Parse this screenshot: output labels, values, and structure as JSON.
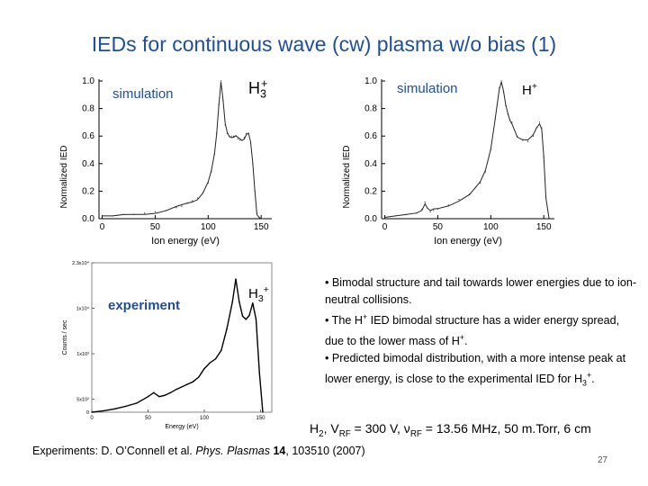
{
  "slide": {
    "title": "IEDs for continuous wave (cw) plasma w/o bias (1)",
    "page_number": "27"
  },
  "labels": {
    "sim_left": "simulation",
    "sim_right": "simulation",
    "exp_left": "experiment",
    "h3_top_base": "H",
    "h3_top_sup": "+",
    "h3_top_sub": "3",
    "hplus_base": "H",
    "hplus_sup": "+",
    "h3_mid_base": "H",
    "h3_mid_sub": "3",
    "h3_mid_sup": "+"
  },
  "bullets": {
    "b1": "• Bimodal structure and tail towards lower energies due to ion-neutral collisions.",
    "b2_a": "• The H",
    "b2_sup": "+",
    "b2_b": " IED bimodal structure has a wider energy spread, due to the lower mass of H",
    "b2_sup2": "+",
    "b2_c": ".",
    "b3_a": "• Predicted bimodal distribution, with a more intense peak at lower energy, is close to the experimental IED for H",
    "b3_sub": "3",
    "b3_sup": "+",
    "b3_c": "."
  },
  "params": {
    "p1": "H",
    "p1_sub": "2",
    "p2": ", V",
    "p2_sub": "RF",
    "p3": " = 300 V, ν",
    "p3_sub": "RF",
    "p4": " = 13.56 MHz, 50 m.Torr, 6 cm"
  },
  "reference": {
    "prefix": "Experiments: D. O’Connell et al. ",
    "journal": "Phys. Plasmas",
    "volume": "14",
    "suffix": ", 103510 (2007)"
  },
  "chart_data": [
    {
      "type": "line",
      "id": "sim-h3",
      "title": "",
      "xlabel": "Ion energy (eV)",
      "ylabel": "Normalized IED",
      "xlim": [
        -3,
        160
      ],
      "ylim": [
        0,
        1.0
      ],
      "xticks": [
        "0",
        "50",
        "100",
        "150"
      ],
      "yticks": [
        "0.0",
        "0.2",
        "0.4",
        "0.6",
        "0.8",
        "1.0"
      ],
      "x": [
        0,
        10,
        20,
        30,
        40,
        50,
        60,
        70,
        75,
        80,
        85,
        90,
        95,
        100,
        103,
        106,
        108,
        110,
        112,
        114,
        116,
        118,
        120,
        122,
        124,
        126,
        128,
        130,
        132,
        134,
        136,
        138,
        140,
        142,
        144,
        146,
        148,
        150,
        152
      ],
      "y": [
        0.02,
        0.02,
        0.03,
        0.03,
        0.04,
        0.05,
        0.06,
        0.08,
        0.09,
        0.11,
        0.13,
        0.15,
        0.19,
        0.26,
        0.34,
        0.47,
        0.62,
        0.83,
        1.0,
        0.86,
        0.68,
        0.62,
        0.6,
        0.6,
        0.6,
        0.6,
        0.58,
        0.57,
        0.57,
        0.59,
        0.62,
        0.62,
        0.55,
        0.4,
        0.2,
        0.04,
        0.01,
        0.0,
        0.0
      ]
    },
    {
      "type": "line",
      "id": "sim-hplus",
      "title": "",
      "xlabel": "Ion energy (eV)",
      "ylabel": "Normalized IED",
      "xlim": [
        -3,
        160
      ],
      "ylim": [
        0,
        1.0
      ],
      "xticks": [
        "0",
        "50",
        "100",
        "150"
      ],
      "yticks": [
        "0.0",
        "0.2",
        "0.4",
        "0.6",
        "0.8",
        "1.0"
      ],
      "x": [
        0,
        10,
        20,
        30,
        35,
        38,
        40,
        43,
        46,
        50,
        60,
        70,
        80,
        90,
        95,
        100,
        104,
        108,
        110,
        112,
        114,
        116,
        118,
        120,
        125,
        130,
        135,
        140,
        143,
        146,
        148,
        150,
        152,
        155
      ],
      "y": [
        0.01,
        0.02,
        0.03,
        0.04,
        0.07,
        0.12,
        0.08,
        0.05,
        0.06,
        0.07,
        0.1,
        0.14,
        0.18,
        0.26,
        0.34,
        0.5,
        0.72,
        0.95,
        1.0,
        0.92,
        0.82,
        0.76,
        0.72,
        0.7,
        0.6,
        0.57,
        0.56,
        0.6,
        0.66,
        0.7,
        0.66,
        0.45,
        0.15,
        0.0
      ]
    },
    {
      "type": "line",
      "id": "exp-h3",
      "title": "",
      "xlabel": "Energy (eV)",
      "ylabel": "Counts / sec",
      "xlim": [
        0,
        160
      ],
      "ylim": [
        0,
        23000
      ],
      "xticks": [
        "0",
        "50",
        "100",
        "150"
      ],
      "yticks": [
        "0",
        "5x10²",
        "1x10³",
        "1x10⁴",
        "2.3x10⁴"
      ],
      "x": [
        0,
        10,
        20,
        30,
        40,
        45,
        50,
        55,
        60,
        65,
        70,
        75,
        80,
        85,
        90,
        95,
        100,
        105,
        110,
        115,
        120,
        125,
        128,
        131,
        134,
        137,
        140,
        143,
        146,
        149,
        152
      ],
      "y": [
        0,
        200,
        500,
        900,
        1400,
        1900,
        2400,
        3000,
        2400,
        2600,
        3000,
        3500,
        3900,
        4300,
        4700,
        5400,
        6700,
        7600,
        8200,
        9500,
        12800,
        17000,
        20500,
        17000,
        14800,
        14300,
        14900,
        16800,
        14300,
        6000,
        0
      ]
    }
  ]
}
